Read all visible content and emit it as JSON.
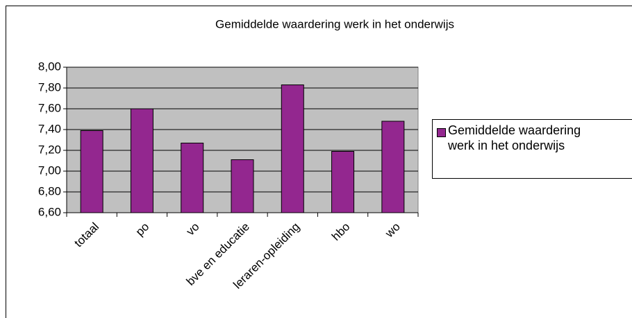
{
  "chart_data": {
    "type": "bar",
    "title": "Gemiddelde waardering werk in het onderwijs",
    "categories": [
      "totaal",
      "po",
      "vo",
      "bve en educatie",
      "leraren-opleiding",
      "hbo",
      "wo"
    ],
    "series": [
      {
        "name": "Gemiddelde waardering werk in het onderwijs",
        "color": "#93278f",
        "values": [
          7.39,
          7.6,
          7.27,
          7.11,
          7.83,
          7.19,
          7.48
        ]
      }
    ],
    "ylim": [
      6.6,
      8.0
    ],
    "yticks": [
      {
        "value": 6.6,
        "label": "6,60"
      },
      {
        "value": 6.8,
        "label": "6,80"
      },
      {
        "value": 7.0,
        "label": "7,00"
      },
      {
        "value": 7.2,
        "label": "7,20"
      },
      {
        "value": 7.4,
        "label": "7,40"
      },
      {
        "value": 7.6,
        "label": "7,60"
      },
      {
        "value": 7.8,
        "label": "7,80"
      },
      {
        "value": 8.0,
        "label": "8,00"
      }
    ],
    "grid": true,
    "plot_background": "#c0c0c0",
    "legend": "right"
  }
}
